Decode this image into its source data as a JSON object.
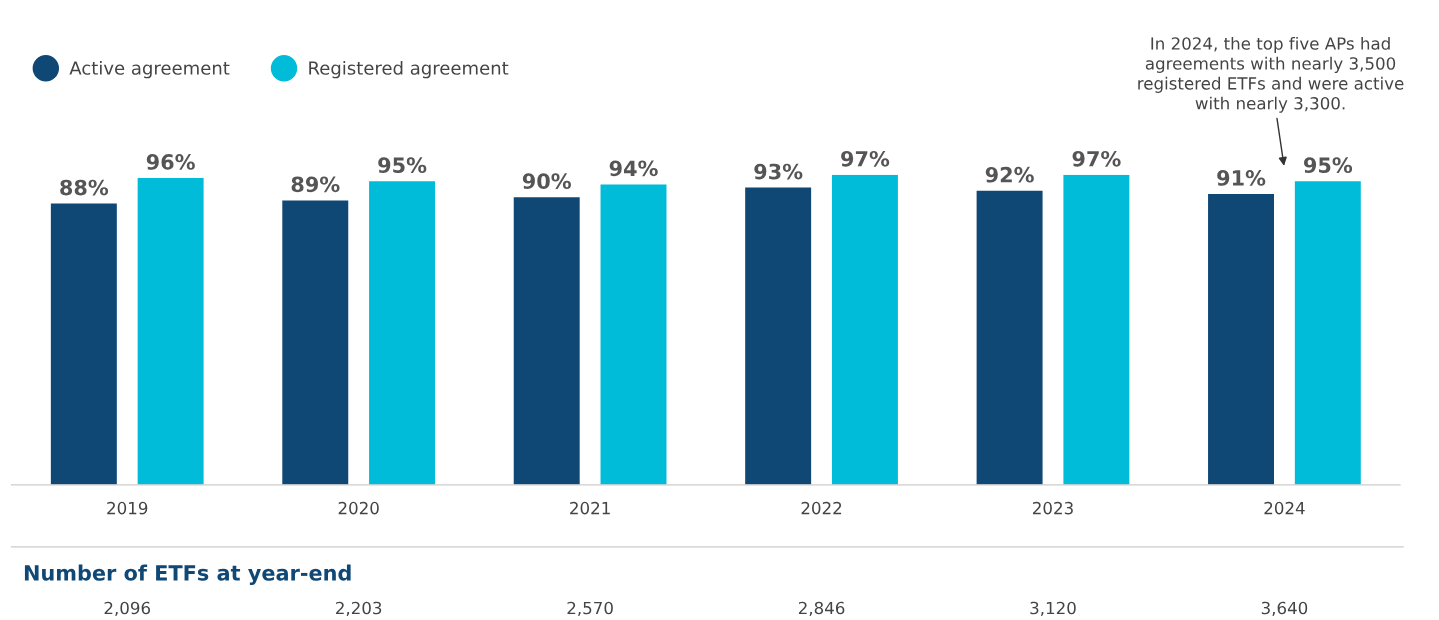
{
  "chart_data": {
    "type": "bar",
    "categories": [
      "2019",
      "2020",
      "2021",
      "2022",
      "2023",
      "2024"
    ],
    "series": [
      {
        "name": "Active agreement",
        "color": "#0f4775",
        "values": [
          88,
          89,
          90,
          93,
          92,
          91
        ],
        "value_labels": [
          "88%",
          "89%",
          "90%",
          "93%",
          "92%",
          "91%"
        ]
      },
      {
        "name": "Registered agreement",
        "color": "#00bcd8",
        "values": [
          96,
          95,
          94,
          97,
          97,
          95
        ],
        "value_labels": [
          "96%",
          "95%",
          "94%",
          "97%",
          "97%",
          "95%"
        ]
      }
    ],
    "legend": "top left",
    "grid": false,
    "tick_labels": "x",
    "marker": "circle",
    "annotations": [
      "In 2024, the top five APs had\nagreements with nearly 3,500\nregistered ETFs and were active\nwith nearly 3,300.",
      "Number of ETFs at year-end",
      "2,096",
      "2,203",
      "2,570",
      "2,846",
      "3,120",
      "3,640"
    ]
  }
}
